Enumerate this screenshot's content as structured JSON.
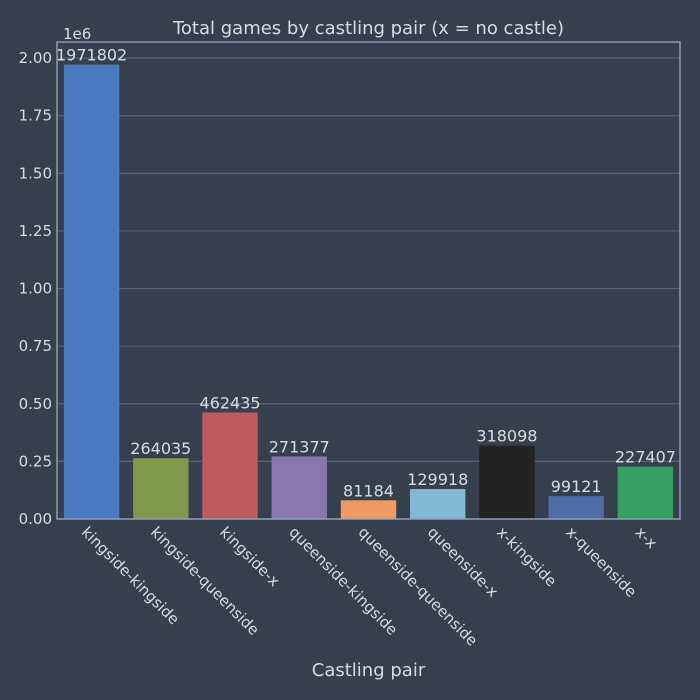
{
  "chart_data": {
    "type": "bar",
    "title": "Total games by castling pair (x = no castle)",
    "xlabel": "Castling pair",
    "ylabel": "",
    "y_offset_label": "1e6",
    "ylim": [
      0,
      2.07
    ],
    "y_ticks": [
      0,
      0.25,
      0.5,
      0.75,
      1.0,
      1.25,
      1.5,
      1.75,
      2.0
    ],
    "y_tick_labels": [
      "0.00",
      "0.25",
      "0.50",
      "0.75",
      "1.00",
      "1.25",
      "1.50",
      "1.75",
      "2.00"
    ],
    "grid": true,
    "categories": [
      "kingside-kingside",
      "kingside-queenside",
      "kingside-x",
      "queenside-kingside",
      "queenside-queenside",
      "queenside-x",
      "x-kingside",
      "x-queenside",
      "x-x"
    ],
    "values": [
      1971802,
      264035,
      462435,
      271377,
      81184,
      129918,
      318098,
      99121,
      227407
    ],
    "value_labels": [
      "1971802",
      "264035",
      "462435",
      "271377",
      "81184",
      "129918",
      "318098",
      "99121",
      "227407"
    ],
    "colors": [
      "#4a7bc0",
      "#7f9a4a",
      "#bf5a5f",
      "#8878ad",
      "#ef9a63",
      "#84b9d3",
      "#232323",
      "#4d6ca8",
      "#35a062"
    ],
    "background": "#363f4d",
    "axes_edge_color": "#8d9db8",
    "grid_color": "#55657a"
  }
}
